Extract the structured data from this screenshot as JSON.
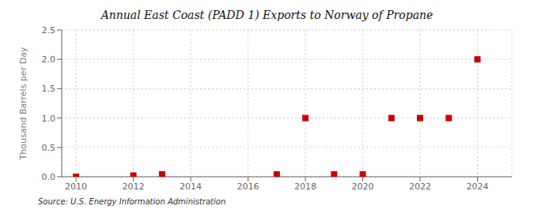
{
  "chart_data": {
    "type": "scatter",
    "title": "Annual East Coast (PADD 1) Exports to Norway of Propane",
    "y_label": "Thousand Barrels per Day",
    "annotations": [
      "Source: U.S. Energy Information Administration"
    ],
    "x": [
      2010,
      2012,
      2013,
      2017,
      2018,
      2019,
      2020,
      2021,
      2022,
      2023,
      2024
    ],
    "values": [
      0.0,
      0.02,
      0.04,
      0.04,
      1.0,
      0.04,
      0.04,
      1.0,
      1.0,
      1.0,
      2.0
    ],
    "color": "#cc0000",
    "marker": "square",
    "xlim": [
      2009.5,
      2025.2
    ],
    "xticks": [
      2010,
      2012,
      2014,
      2016,
      2018,
      2020,
      2022,
      2024
    ],
    "ylim": [
      0.0,
      2.5
    ],
    "yticks": [
      {
        "value": 0,
        "label": "0.0"
      },
      0.5,
      {
        "value": 1,
        "label": "1.0"
      },
      1.5,
      {
        "value": 2,
        "label": "2.0"
      },
      2.5
    ],
    "grid": true
  }
}
